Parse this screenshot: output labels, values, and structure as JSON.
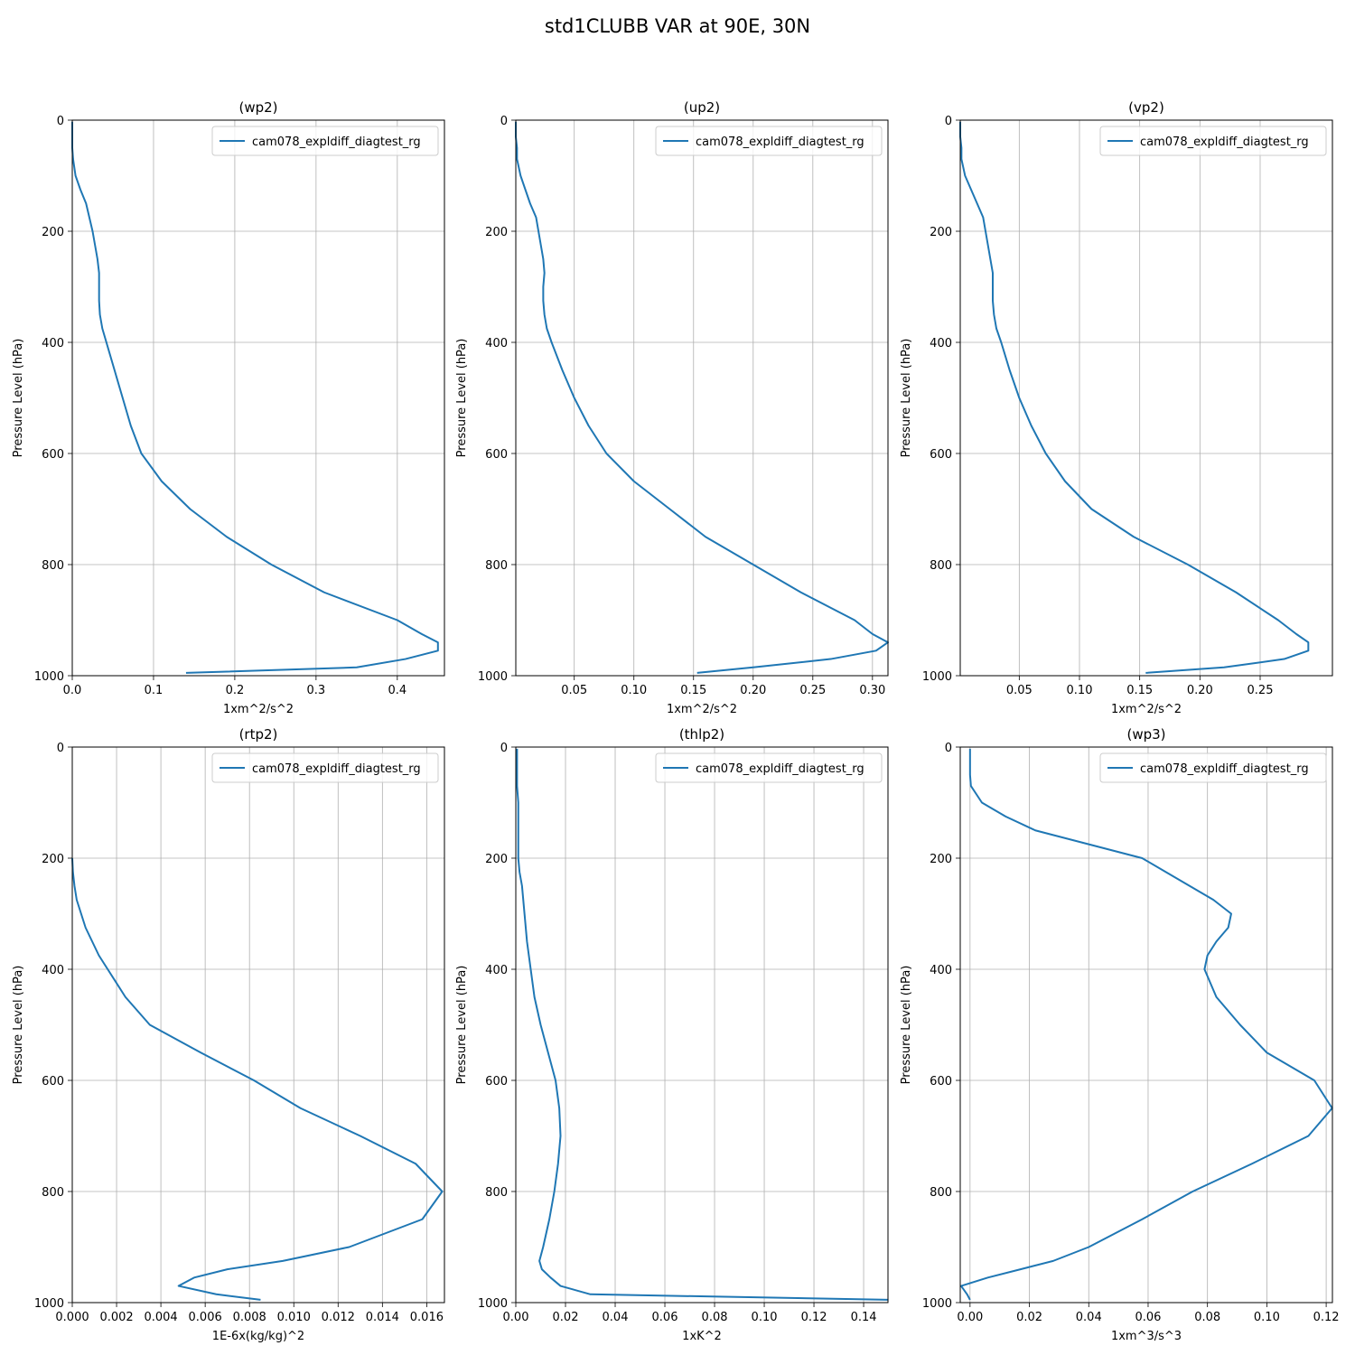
{
  "title": "std1CLUBB VAR at 90E, 30N",
  "chart_data": [
    {
      "type": "line",
      "title": "(wp2)",
      "xlabel": "1xm^2/s^2",
      "ylabel": "Pressure Level (hPa)",
      "xlim": [
        0,
        0.458
      ],
      "xticks": [
        {
          "value": 0,
          "label": "0.0"
        },
        0.1,
        0.2,
        0.3,
        0.4
      ],
      "ylim": [
        1000,
        0
      ],
      "yticks": [
        0,
        200,
        400,
        600,
        800,
        1000
      ],
      "grid": true,
      "legend": "upper right",
      "levels": [
        3,
        10,
        30,
        50,
        70,
        100,
        125,
        150,
        175,
        200,
        225,
        250,
        275,
        300,
        325,
        350,
        375,
        400,
        450,
        500,
        550,
        600,
        650,
        700,
        750,
        800,
        850,
        900,
        925,
        940,
        955,
        970,
        985,
        995
      ],
      "series": [
        {
          "name": "cam078_expldiff_diagtest_rg",
          "color": "#1f77b4",
          "values": [
            0,
            0,
            0,
            0,
            0.001,
            0.004,
            0.01,
            0.017,
            0.021,
            0.025,
            0.028,
            0.031,
            0.033,
            0.033,
            0.033,
            0.034,
            0.037,
            0.042,
            0.052,
            0.062,
            0.072,
            0.085,
            0.11,
            0.145,
            0.19,
            0.245,
            0.31,
            0.4,
            0.43,
            0.45,
            0.45,
            0.41,
            0.35,
            0.14
          ]
        }
      ]
    },
    {
      "type": "line",
      "title": "(up2)",
      "xlabel": "1xm^2/s^2",
      "ylabel": "Pressure Level (hPa)",
      "xlim": [
        0.001,
        0.313
      ],
      "xticks": [
        0.05,
        {
          "value": 0.1,
          "label": "0.10"
        },
        0.15,
        {
          "value": 0.2,
          "label": "0.20"
        },
        0.25,
        {
          "value": 0.3,
          "label": "0.30"
        }
      ],
      "ylim": [
        1000,
        0
      ],
      "yticks": [
        0,
        200,
        400,
        600,
        800,
        1000
      ],
      "grid": true,
      "legend": "upper right",
      "levels": [
        3,
        10,
        30,
        50,
        70,
        100,
        125,
        150,
        175,
        200,
        225,
        250,
        275,
        300,
        325,
        350,
        375,
        400,
        450,
        500,
        550,
        600,
        650,
        700,
        750,
        800,
        850,
        900,
        925,
        940,
        955,
        970,
        985,
        995
      ],
      "series": [
        {
          "name": "cam078_expldiff_diagtest_rg",
          "color": "#1f77b4",
          "values": [
            0.001,
            0.001,
            0.001,
            0.002,
            0.002,
            0.005,
            0.009,
            0.013,
            0.018,
            0.02,
            0.022,
            0.024,
            0.025,
            0.024,
            0.024,
            0.025,
            0.027,
            0.031,
            0.04,
            0.05,
            0.062,
            0.077,
            0.1,
            0.13,
            0.16,
            0.2,
            0.24,
            0.285,
            0.3,
            0.313,
            0.303,
            0.265,
            0.2,
            0.153
          ]
        }
      ]
    },
    {
      "type": "line",
      "title": "(vp2)",
      "xlabel": "1xm^2/s^2",
      "ylabel": "Pressure Level (hPa)",
      "xlim": [
        0.001,
        0.31
      ],
      "xticks": [
        0.05,
        {
          "value": 0.1,
          "label": "0.10"
        },
        0.15,
        {
          "value": 0.2,
          "label": "0.20"
        },
        0.25
      ],
      "ylim": [
        1000,
        0
      ],
      "yticks": [
        0,
        200,
        400,
        600,
        800,
        1000
      ],
      "grid": true,
      "legend": "upper right",
      "levels": [
        3,
        10,
        30,
        50,
        70,
        100,
        125,
        150,
        175,
        200,
        225,
        250,
        275,
        300,
        325,
        350,
        375,
        400,
        450,
        500,
        550,
        600,
        650,
        700,
        750,
        800,
        850,
        900,
        925,
        940,
        955,
        970,
        985,
        995
      ],
      "series": [
        {
          "name": "cam078_expldiff_diagtest_rg",
          "color": "#1f77b4",
          "values": [
            0.001,
            0.001,
            0.001,
            0.002,
            0.002,
            0.005,
            0.01,
            0.015,
            0.02,
            0.022,
            0.024,
            0.026,
            0.028,
            0.028,
            0.028,
            0.029,
            0.031,
            0.035,
            0.042,
            0.05,
            0.06,
            0.072,
            0.088,
            0.11,
            0.145,
            0.19,
            0.23,
            0.265,
            0.28,
            0.29,
            0.29,
            0.27,
            0.22,
            0.155
          ]
        }
      ]
    },
    {
      "type": "line",
      "title": "(rtp2)",
      "xlabel": "1E-6x(kg/kg)^2",
      "ylabel": "Pressure Level (hPa)",
      "xlim": [
        0,
        0.0168
      ],
      "xticks": [
        {
          "value": 0,
          "label": "0.000"
        },
        0.002,
        0.004,
        0.006,
        0.008,
        {
          "value": 0.01,
          "label": "0.010"
        },
        0.012,
        0.014,
        0.016
      ],
      "ylim": [
        1000,
        0
      ],
      "yticks": [
        0,
        200,
        400,
        600,
        800,
        1000
      ],
      "grid": true,
      "legend": "upper right",
      "levels": [
        200,
        225,
        250,
        275,
        300,
        325,
        350,
        375,
        400,
        450,
        500,
        550,
        600,
        650,
        700,
        750,
        800,
        850,
        900,
        925,
        940,
        955,
        970,
        985,
        995
      ],
      "series": [
        {
          "name": "cam078_expldiff_diagtest_rg",
          "color": "#1f77b4",
          "values": [
            0,
            3e-05,
            0.0001,
            0.0002,
            0.0004,
            0.0006,
            0.0009,
            0.0012,
            0.0016,
            0.0024,
            0.0035,
            0.0058,
            0.0082,
            0.0103,
            0.013,
            0.0155,
            0.0167,
            0.0158,
            0.0125,
            0.0095,
            0.007,
            0.0055,
            0.0048,
            0.0065,
            0.0085
          ]
        }
      ]
    },
    {
      "type": "line",
      "title": "(thlp2)",
      "xlabel": "1xK^2",
      "ylabel": "Pressure Level (hPa)",
      "xlim": [
        0,
        0.1498
      ],
      "xticks": [
        {
          "value": 0,
          "label": "0.00"
        },
        0.02,
        0.04,
        0.06,
        0.08,
        {
          "value": 0.1,
          "label": "0.10"
        },
        0.12,
        0.14
      ],
      "ylim": [
        1000,
        0
      ],
      "yticks": [
        0,
        200,
        400,
        600,
        800,
        1000
      ],
      "grid": true,
      "legend": "upper right",
      "levels": [
        3,
        10,
        30,
        50,
        70,
        100,
        150,
        200,
        225,
        250,
        275,
        300,
        350,
        400,
        450,
        500,
        550,
        600,
        650,
        700,
        750,
        800,
        850,
        900,
        925,
        940,
        955,
        970,
        985,
        995
      ],
      "series": [
        {
          "name": "cam078_expldiff_diagtest_rg",
          "color": "#1f77b4",
          "values": [
            0.0005,
            0.0005,
            0.0005,
            0.0005,
            0.0005,
            0.001,
            0.001,
            0.001,
            0.0015,
            0.0025,
            0.003,
            0.0035,
            0.0045,
            0.006,
            0.0075,
            0.01,
            0.013,
            0.016,
            0.0175,
            0.018,
            0.017,
            0.0155,
            0.0135,
            0.011,
            0.0095,
            0.0105,
            0.014,
            0.018,
            0.03,
            0.15
          ]
        }
      ]
    },
    {
      "type": "line",
      "title": "(wp3)",
      "xlabel": "1xm^3/s^3",
      "ylabel": "Pressure Level (hPa)",
      "xlim": [
        -0.0033,
        0.1221
      ],
      "xticks": [
        {
          "value": 0,
          "label": "0.00"
        },
        0.02,
        0.04,
        0.06,
        0.08,
        {
          "value": 0.1,
          "label": "0.10"
        },
        0.12
      ],
      "ylim": [
        1000,
        0
      ],
      "yticks": [
        0,
        200,
        400,
        600,
        800,
        1000
      ],
      "grid": true,
      "legend": "upper right",
      "levels": [
        3,
        10,
        30,
        50,
        70,
        100,
        125,
        150,
        175,
        200,
        225,
        250,
        275,
        300,
        325,
        350,
        375,
        400,
        450,
        500,
        550,
        600,
        650,
        700,
        750,
        800,
        850,
        900,
        925,
        940,
        955,
        970,
        985,
        995
      ],
      "series": [
        {
          "name": "cam078_expldiff_diagtest_rg",
          "color": "#1f77b4",
          "values": [
            0,
            0,
            0,
            0,
            0.0003,
            0.004,
            0.012,
            0.022,
            0.04,
            0.058,
            0.066,
            0.074,
            0.082,
            0.088,
            0.087,
            0.083,
            0.08,
            0.079,
            0.083,
            0.091,
            0.1,
            0.116,
            0.122,
            0.114,
            0.095,
            0.075,
            0.058,
            0.04,
            0.028,
            0.017,
            0.006,
            -0.003,
            -0.001,
            0
          ]
        }
      ]
    }
  ]
}
